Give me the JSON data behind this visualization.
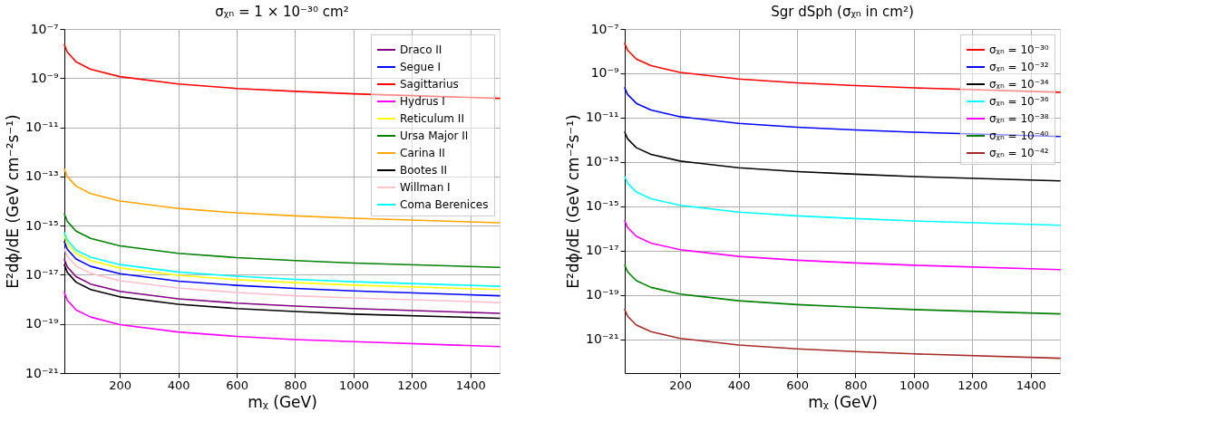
{
  "chart_data": [
    {
      "type": "line",
      "title": "σᵪₙ = 1 × 10⁻³⁰ cm²",
      "xlabel": "mᵪ (GeV)",
      "ylabel": "E²dϕ/dE (GeV cm⁻²s⁻¹)",
      "x": [
        10,
        20,
        50,
        100,
        200,
        400,
        600,
        800,
        1000,
        1500
      ],
      "xlim": [
        10,
        1500
      ],
      "xticks": [
        200,
        400,
        600,
        800,
        1000,
        1200,
        1400
      ],
      "ylim": [
        1e-21,
        1e-07
      ],
      "log": "y",
      "yticks": [
        {
          "value": 1e-07,
          "label": "10⁻⁷"
        },
        {
          "value": 1e-09,
          "label": "10⁻⁹"
        },
        {
          "value": 1e-11,
          "label": "10⁻¹¹"
        },
        {
          "value": 1e-13,
          "label": "10⁻¹³"
        },
        {
          "value": 1e-15,
          "label": "10⁻¹⁵"
        },
        {
          "value": 1e-17,
          "label": "10⁻¹⁷"
        },
        {
          "value": 1e-19,
          "label": "10⁻¹⁹"
        },
        {
          "value": 1e-21,
          "label": "10⁻²¹"
        }
      ],
      "grid": true,
      "legend": "top right",
      "marker": "none",
      "line_style": "solid",
      "series": [
        {
          "name": "Draco II",
          "color": "#800080",
          "values": [
            4.2e-17,
            2.1e-17,
            8.4e-18,
            4.2e-18,
            2.1e-18,
            1.05e-18,
            7e-19,
            5.3e-19,
            4.2e-19,
            2.7e-19
          ]
        },
        {
          "name": "Segue I",
          "color": "#0000ff",
          "values": [
            2.2e-16,
            1.1e-16,
            4.4e-17,
            2.2e-17,
            1.1e-17,
            5.5e-18,
            3.7e-18,
            2.8e-18,
            2.2e-18,
            1.4e-18
          ]
        },
        {
          "name": "Sagittarius",
          "color": "#ff0000",
          "values": [
            2.3e-08,
            1.15e-08,
            4.6e-09,
            2.3e-09,
            1.15e-09,
            5.8e-10,
            3.8e-10,
            2.9e-10,
            2.3e-10,
            1.5e-10
          ]
        },
        {
          "name": "Hydrus I",
          "color": "#ff00ff",
          "values": [
            1.9e-18,
            9.3e-19,
            3.7e-19,
            1.9e-19,
            9.3e-20,
            4.7e-20,
            3.1e-20,
            2.3e-20,
            1.9e-20,
            1.2e-20
          ]
        },
        {
          "name": "Reticulum II",
          "color": "#ffff00",
          "values": [
            3.8e-16,
            1.9e-16,
            7.6e-17,
            3.8e-17,
            1.9e-17,
            9.5e-18,
            6.3e-18,
            4.8e-18,
            3.8e-18,
            2.5e-18
          ]
        },
        {
          "name": "Ursa Major II",
          "color": "#008000",
          "values": [
            3e-15,
            1.5e-15,
            6e-16,
            3e-16,
            1.5e-16,
            7.5e-17,
            5e-17,
            3.8e-17,
            3e-17,
            2e-17
          ]
        },
        {
          "name": "Carina II",
          "color": "#ffa500",
          "values": [
            2e-13,
            1e-13,
            4e-14,
            2e-14,
            1e-14,
            5e-15,
            3.3e-15,
            2.5e-15,
            2e-15,
            1.3e-15
          ]
        },
        {
          "name": "Bootes II",
          "color": "#000000",
          "values": [
            2.5e-17,
            1.26e-17,
            5e-18,
            2.5e-18,
            1.26e-18,
            6.3e-19,
            4.2e-19,
            3.2e-19,
            2.5e-19,
            1.7e-19
          ]
        },
        {
          "name": "Willman I",
          "color": "#ffc0cb",
          "values": [
            1.14e-16,
            5.7e-17,
            2.3e-17,
            1.14e-17,
            5.7e-18,
            2.9e-18,
            1.9e-18,
            1.4e-18,
            1.14e-18,
            7.4e-19
          ]
        },
        {
          "name": "Coma Berenices",
          "color": "#00ffff",
          "values": [
            5.2e-16,
            2.6e-16,
            1e-16,
            5.2e-17,
            2.6e-17,
            1.3e-17,
            8.7e-18,
            6.5e-18,
            5.2e-18,
            3.4e-18
          ]
        }
      ]
    },
    {
      "type": "line",
      "title": "Sgr dSph (σᵪₙ in cm²)",
      "xlabel": "mᵪ (GeV)",
      "ylabel": "E²dϕ/dE (GeV cm⁻²s⁻¹)",
      "x": [
        10,
        20,
        50,
        100,
        200,
        400,
        600,
        800,
        1000,
        1500
      ],
      "xlim": [
        10,
        1500
      ],
      "xticks": [
        200,
        400,
        600,
        800,
        1000,
        1200,
        1400
      ],
      "ylim": [
        3e-23,
        1e-07
      ],
      "log": "y",
      "yticks": [
        {
          "value": 1e-07,
          "label": "10⁻⁷"
        },
        {
          "value": 1e-09,
          "label": "10⁻⁹"
        },
        {
          "value": 1e-11,
          "label": "10⁻¹¹"
        },
        {
          "value": 1e-13,
          "label": "10⁻¹³"
        },
        {
          "value": 1e-15,
          "label": "10⁻¹⁵"
        },
        {
          "value": 1e-17,
          "label": "10⁻¹⁷"
        },
        {
          "value": 1e-19,
          "label": "10⁻¹⁹"
        },
        {
          "value": 1e-21,
          "label": "10⁻²¹"
        }
      ],
      "grid": true,
      "legend": "top right",
      "marker": "none",
      "line_style": "solid",
      "series": [
        {
          "name": "σᵪₙ = 10⁻³⁰",
          "color": "#ff0000",
          "values": [
            2.2e-08,
            1.1e-08,
            4.4e-09,
            2.2e-09,
            1.1e-09,
            5.5e-10,
            3.7e-10,
            2.8e-10,
            2.2e-10,
            1.4e-10
          ]
        },
        {
          "name": "σᵪₙ = 10⁻³²",
          "color": "#0000ff",
          "values": [
            2.2e-10,
            1.1e-10,
            4.4e-11,
            2.2e-11,
            1.1e-11,
            5.5e-12,
            3.7e-12,
            2.8e-12,
            2.2e-12,
            1.4e-12
          ]
        },
        {
          "name": "σᵪₙ = 10⁻³⁴",
          "color": "#000000",
          "values": [
            2.2e-12,
            1.1e-12,
            4.4e-13,
            2.2e-13,
            1.1e-13,
            5.5e-14,
            3.7e-14,
            2.8e-14,
            2.2e-14,
            1.4e-14
          ]
        },
        {
          "name": "σᵪₙ = 10⁻³⁶",
          "color": "#00ffff",
          "values": [
            2.2e-14,
            1.1e-14,
            4.4e-15,
            2.2e-15,
            1.1e-15,
            5.5e-16,
            3.7e-16,
            2.8e-16,
            2.2e-16,
            1.4e-16
          ]
        },
        {
          "name": "σᵪₙ = 10⁻³⁸",
          "color": "#ff00ff",
          "values": [
            2.2e-16,
            1.1e-16,
            4.4e-17,
            2.2e-17,
            1.1e-17,
            5.5e-18,
            3.7e-18,
            2.8e-18,
            2.2e-18,
            1.4e-18
          ]
        },
        {
          "name": "σᵪₙ = 10⁻⁴⁰",
          "color": "#008000",
          "values": [
            2.2e-18,
            1.1e-18,
            4.4e-19,
            2.2e-19,
            1.1e-19,
            5.5e-20,
            3.7e-20,
            2.8e-20,
            2.2e-20,
            1.4e-20
          ]
        },
        {
          "name": "σᵪₙ = 10⁻⁴²",
          "color": "#a52a2a",
          "values": [
            2.2e-20,
            1.1e-20,
            4.4e-21,
            2.2e-21,
            1.1e-21,
            5.5e-22,
            3.7e-22,
            2.8e-22,
            2.2e-22,
            1.4e-22
          ]
        }
      ]
    }
  ]
}
